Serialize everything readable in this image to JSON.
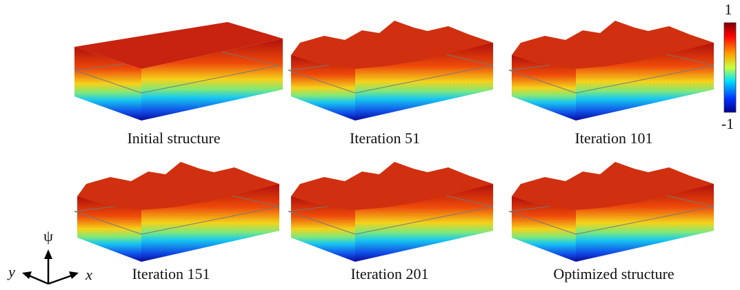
{
  "panels": [
    {
      "label": "Initial structure"
    },
    {
      "label": "Iteration 51"
    },
    {
      "label": "Iteration 101"
    },
    {
      "label": "Iteration 151"
    },
    {
      "label": "Iteration 201"
    },
    {
      "label": "Optimized structure"
    }
  ],
  "colorbar": {
    "max_label": "1",
    "min_label": "-1"
  },
  "axes": {
    "vertical": "ψ",
    "left": "y",
    "right": "x"
  }
}
